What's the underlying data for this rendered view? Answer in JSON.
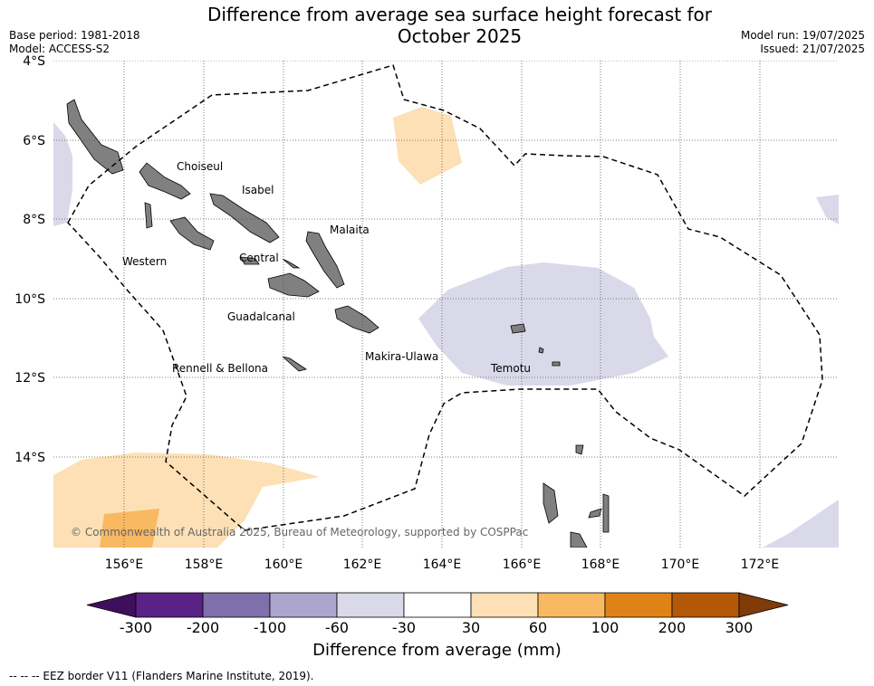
{
  "header": {
    "title_line1": "Difference from average sea surface height forecast for",
    "title_line2": "October 2025",
    "base_period": "Base period: 1981-2018",
    "model": "Model: ACCESS-S2",
    "model_run": "Model run: 19/07/2025",
    "issued": "Issued: 21/07/2025"
  },
  "map": {
    "lat_labels": [
      "4°S",
      "6°S",
      "8°S",
      "10°S",
      "12°S",
      "14°S"
    ],
    "lon_labels": [
      "156°E",
      "158°E",
      "160°E",
      "162°E",
      "164°E",
      "166°E",
      "168°E",
      "170°E",
      "172°E"
    ],
    "regions": [
      "Choiseul",
      "Isabel",
      "Malaita",
      "Western",
      "Central",
      "Guadalcanal",
      "Makira-Ulawa",
      "Rennell & Bellona",
      "Temotu"
    ],
    "copyright": "© Commonwealth of Australia 2025, Bureau of Meteorology, supported by COSPPac",
    "colors": {
      "land": "#808080",
      "eez_border": "#000000",
      "gridline": "#555555"
    }
  },
  "colorbar": {
    "title": "Difference from average (mm)",
    "tick_labels": [
      "-300",
      "-200",
      "-100",
      "-60",
      "-30",
      "30",
      "60",
      "100",
      "200",
      "300"
    ],
    "colors": [
      "#3f0f5e",
      "#5a2287",
      "#7f6faa",
      "#aca5cd",
      "#d9d9e9",
      "#ffffff",
      "#fde0b5",
      "#f9b862",
      "#e08316",
      "#b35806",
      "#7f3b08"
    ]
  },
  "footer": {
    "legend_note": "--  --  -- EEZ border V11 (Flanders Marine Institute, 2019)."
  }
}
